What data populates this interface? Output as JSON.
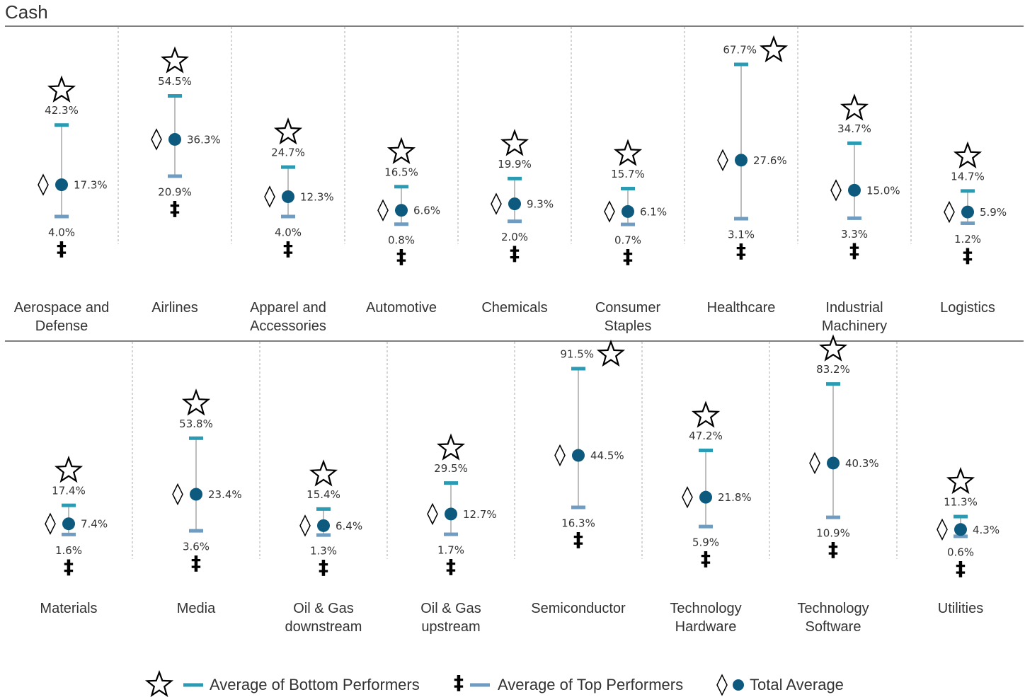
{
  "chart_data": [
    {
      "type": "range",
      "title": "Cash",
      "categories": [
        "Aerospace and Defense",
        "Airlines",
        "Apparel and Accessories",
        "Automotive",
        "Chemicals",
        "Consumer Staples",
        "Healthcare",
        "Industrial Machinery",
        "Logistics"
      ],
      "series": [
        {
          "name": "Average of Bottom Performers",
          "color": "#2a9bb3",
          "values": [
            42.3,
            54.5,
            24.7,
            16.5,
            19.9,
            15.7,
            67.7,
            34.7,
            14.7
          ],
          "value_labels": [
            "42.3%",
            "54.5%",
            "24.7%",
            "16.5%",
            "19.9%",
            "15.7%",
            "67.7%",
            "34.7%",
            "14.7%"
          ]
        },
        {
          "name": "Average of Top Performers",
          "color": "#6f9cc0",
          "values": [
            4.0,
            20.9,
            4.0,
            0.8,
            2.0,
            0.7,
            3.1,
            3.3,
            1.2
          ],
          "value_labels": [
            "4.0%",
            "20.9%",
            "4.0%",
            "0.8%",
            "2.0%",
            "0.7%",
            "3.1%",
            "3.3%",
            "1.2%"
          ]
        },
        {
          "name": "Total Average",
          "color": "#0e5a7e",
          "values": [
            17.3,
            36.3,
            12.3,
            6.6,
            9.3,
            6.1,
            27.6,
            15.0,
            5.9
          ],
          "value_labels": [
            "17.3%",
            "36.3%",
            "12.3%",
            "6.6%",
            "9.3%",
            "6.1%",
            "27.6%",
            "15.0%",
            "5.9%"
          ]
        }
      ]
    },
    {
      "type": "range",
      "categories": [
        "Materials",
        "Media",
        "Oil & Gas downstream",
        "Oil & Gas upstream",
        "Semiconductor",
        "Technology Hardware",
        "Technology Software",
        "Utilities"
      ],
      "series": [
        {
          "name": "Average of Bottom Performers",
          "color": "#2a9bb3",
          "values": [
            17.4,
            53.8,
            15.4,
            29.5,
            91.5,
            47.2,
            83.2,
            11.3
          ],
          "value_labels": [
            "17.4%",
            "53.8%",
            "15.4%",
            "29.5%",
            "91.5%",
            "47.2%",
            "83.2%",
            "11.3%"
          ]
        },
        {
          "name": "Average of Top Performers",
          "color": "#6f9cc0",
          "values": [
            1.6,
            3.6,
            1.3,
            1.7,
            16.3,
            5.9,
            10.9,
            0.6
          ],
          "value_labels": [
            "1.6%",
            "3.6%",
            "1.3%",
            "1.7%",
            "16.3%",
            "5.9%",
            "10.9%",
            "0.6%"
          ]
        },
        {
          "name": "Total Average",
          "color": "#0e5a7e",
          "values": [
            7.4,
            23.4,
            6.4,
            12.7,
            44.5,
            21.8,
            40.3,
            4.3
          ],
          "value_labels": [
            "7.4%",
            "23.4%",
            "6.4%",
            "12.7%",
            "44.5%",
            "21.8%",
            "40.3%",
            "4.3%"
          ]
        }
      ]
    }
  ]
}
